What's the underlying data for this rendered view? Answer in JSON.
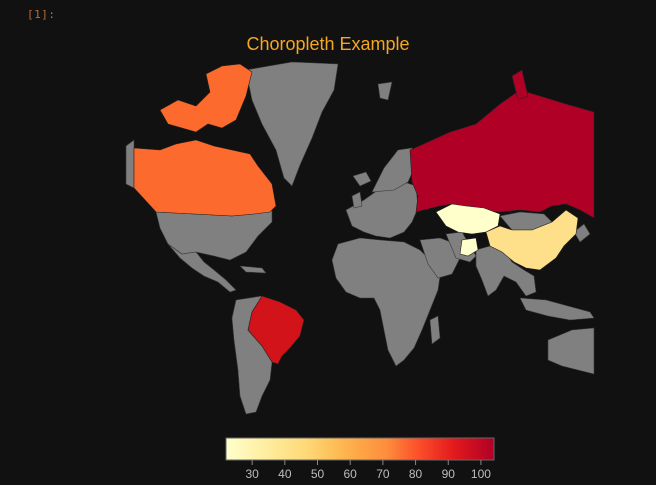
{
  "cell": {
    "prompt": "[1]:"
  },
  "chart_data": {
    "type": "choropleth",
    "title": "Choropleth Example",
    "colorscale": [
      "#ffffcc",
      "#ffeda0",
      "#fed976",
      "#feb24c",
      "#fd8d3c",
      "#fc4e2a",
      "#e31a1c",
      "#bd0026",
      "#b00026"
    ],
    "colorbar": {
      "ticks": [
        "30",
        "40",
        "50",
        "60",
        "70",
        "80",
        "90",
        "100"
      ],
      "range": [
        22,
        104
      ]
    },
    "countries": [
      {
        "name": "Canada",
        "value": 65
      },
      {
        "name": "Russia",
        "value": 100
      },
      {
        "name": "Brazil",
        "value": 90
      },
      {
        "name": "China",
        "value": 35
      },
      {
        "name": "Kazakhstan",
        "value": 22
      },
      {
        "name": "Afghanistan",
        "value": 22
      }
    ],
    "land_color": "#808080",
    "background": "#111111"
  }
}
